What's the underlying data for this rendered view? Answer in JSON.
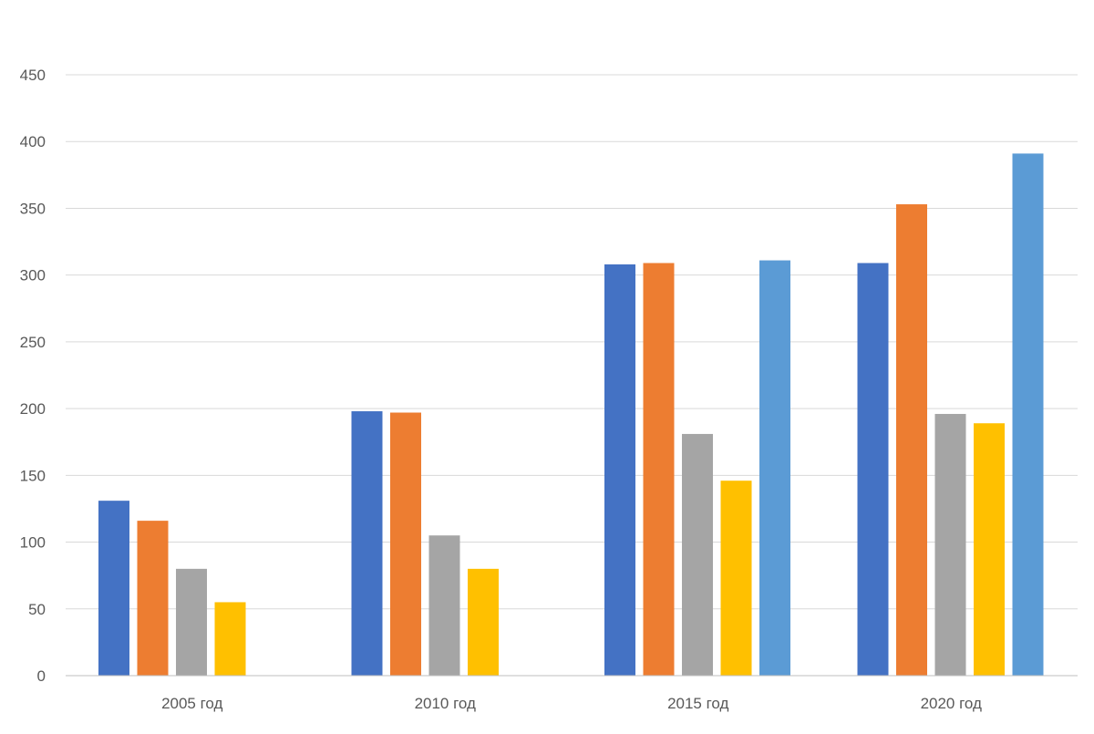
{
  "chart_data": {
    "type": "bar",
    "title": "",
    "xlabel": "",
    "ylabel": "",
    "categories": [
      "2005 год",
      "2010 год",
      "2015 год",
      "2020 год"
    ],
    "ylim": [
      0,
      450
    ],
    "yticks": [
      0,
      50,
      100,
      150,
      200,
      250,
      300,
      350,
      400,
      450
    ],
    "grid": true,
    "legend": "none",
    "series": [
      {
        "color": "#4472C4",
        "values": [
          131,
          198,
          308,
          309
        ]
      },
      {
        "color": "#ED7D31",
        "values": [
          116,
          197,
          309,
          353
        ]
      },
      {
        "color": "#A5A5A5",
        "values": [
          80,
          105,
          181,
          196
        ]
      },
      {
        "color": "#FFC000",
        "values": [
          55,
          80,
          146,
          189
        ]
      },
      {
        "color": "#5B9BD5",
        "values": [
          null,
          null,
          311,
          391
        ]
      }
    ]
  }
}
